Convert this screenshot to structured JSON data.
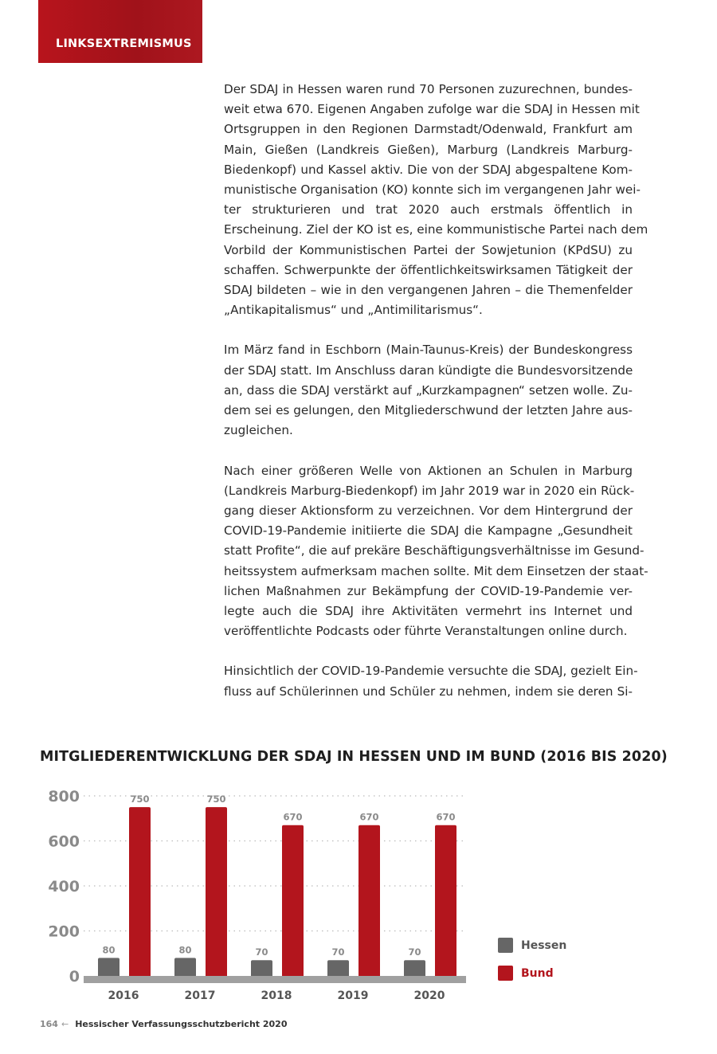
{
  "header": {
    "section": "LINKSEXTREMISMUS",
    "color": "#b3151d"
  },
  "paragraphs": [
    [
      "Der SDAJ in Hessen waren rund 70 Personen zuzurechnen, bundes-",
      "weit etwa 670. Eigenen Angaben zufolge war die SDAJ in Hessen mit",
      "Ortsgruppen in den Regionen Darmstadt/Odenwald, Frankfurt am",
      "Main, Gießen (Landkreis Gießen), Marburg (Landkreis Marburg-",
      "Biedenkopf) und Kassel aktiv. Die von der SDAJ abgespaltene Kom-",
      "munistische Organisation (KO) konnte sich im vergangenen Jahr wei-",
      "ter strukturieren und trat 2020 auch erstmals öffentlich in",
      "Erscheinung. Ziel der KO ist es, eine kommunistische Partei nach dem",
      "Vorbild der Kommunistischen Partei der Sowjetunion (KPdSU) zu",
      "schaffen. Schwerpunkte der öffentlichkeitswirksamen Tätigkeit der",
      "SDAJ bildeten – wie in den vergangenen Jahren – die Themenfelder",
      "„Antikapitalismus“ und „Antimilitarismus“."
    ],
    [
      "Im März fand in Eschborn (Main-Taunus-Kreis) der Bundeskongress",
      "der SDAJ statt. Im Anschluss daran kündigte die Bundesvorsitzende",
      "an, dass die SDAJ verstärkt auf „Kurzkampagnen“ setzen wolle. Zu-",
      "dem sei es gelungen, den Mitgliederschwund der letzten Jahre aus-",
      "zugleichen."
    ],
    [
      "Nach einer größeren Welle von Aktionen an Schulen in Marburg",
      "(Landkreis Marburg-Biedenkopf) im Jahr 2019 war in 2020 ein Rück-",
      "gang dieser Aktionsform zu verzeichnen. Vor dem Hintergrund der",
      "COVID-19-Pandemie initiierte die SDAJ die Kampagne „Gesundheit",
      "statt Profite“, die auf prekäre Beschäftigungsverhältnisse im Gesund-",
      "heitssystem aufmerksam machen sollte. Mit dem Einsetzen der staat-",
      "lichen Maßnahmen zur Bekämpfung der COVID-19-Pandemie ver-",
      "legte auch die SDAJ ihre Aktivitäten vermehrt ins Internet und",
      "veröffentlichte Podcasts oder führte Veranstaltungen online durch."
    ],
    [
      "Hinsichtlich der COVID-19-Pandemie versuchte die SDAJ, gezielt Ein-",
      "fluss auf Schülerinnen und Schüler zu nehmen, indem sie deren Si-"
    ]
  ],
  "chart_data": {
    "type": "bar",
    "title": "MITGLIEDERENTWICKLUNG DER SDAJ IN HESSEN UND IM BUND (2016 BIS 2020)",
    "categories": [
      "2016",
      "2017",
      "2018",
      "2019",
      "2020"
    ],
    "series": [
      {
        "name": "Hessen",
        "values": [
          80,
          80,
          70,
          70,
          70
        ],
        "color": "#666666"
      },
      {
        "name": "Bund",
        "values": [
          750,
          750,
          670,
          670,
          670
        ],
        "color": "#b3151d"
      }
    ],
    "yticks": [
      "0",
      "200",
      "400",
      "600",
      "800"
    ],
    "ylim": [
      0,
      800
    ],
    "grid": true,
    "legend": "right"
  },
  "footer": {
    "page": "164",
    "arrow": "←",
    "title": "Hessischer Verfassungsschutzbericht 2020"
  }
}
